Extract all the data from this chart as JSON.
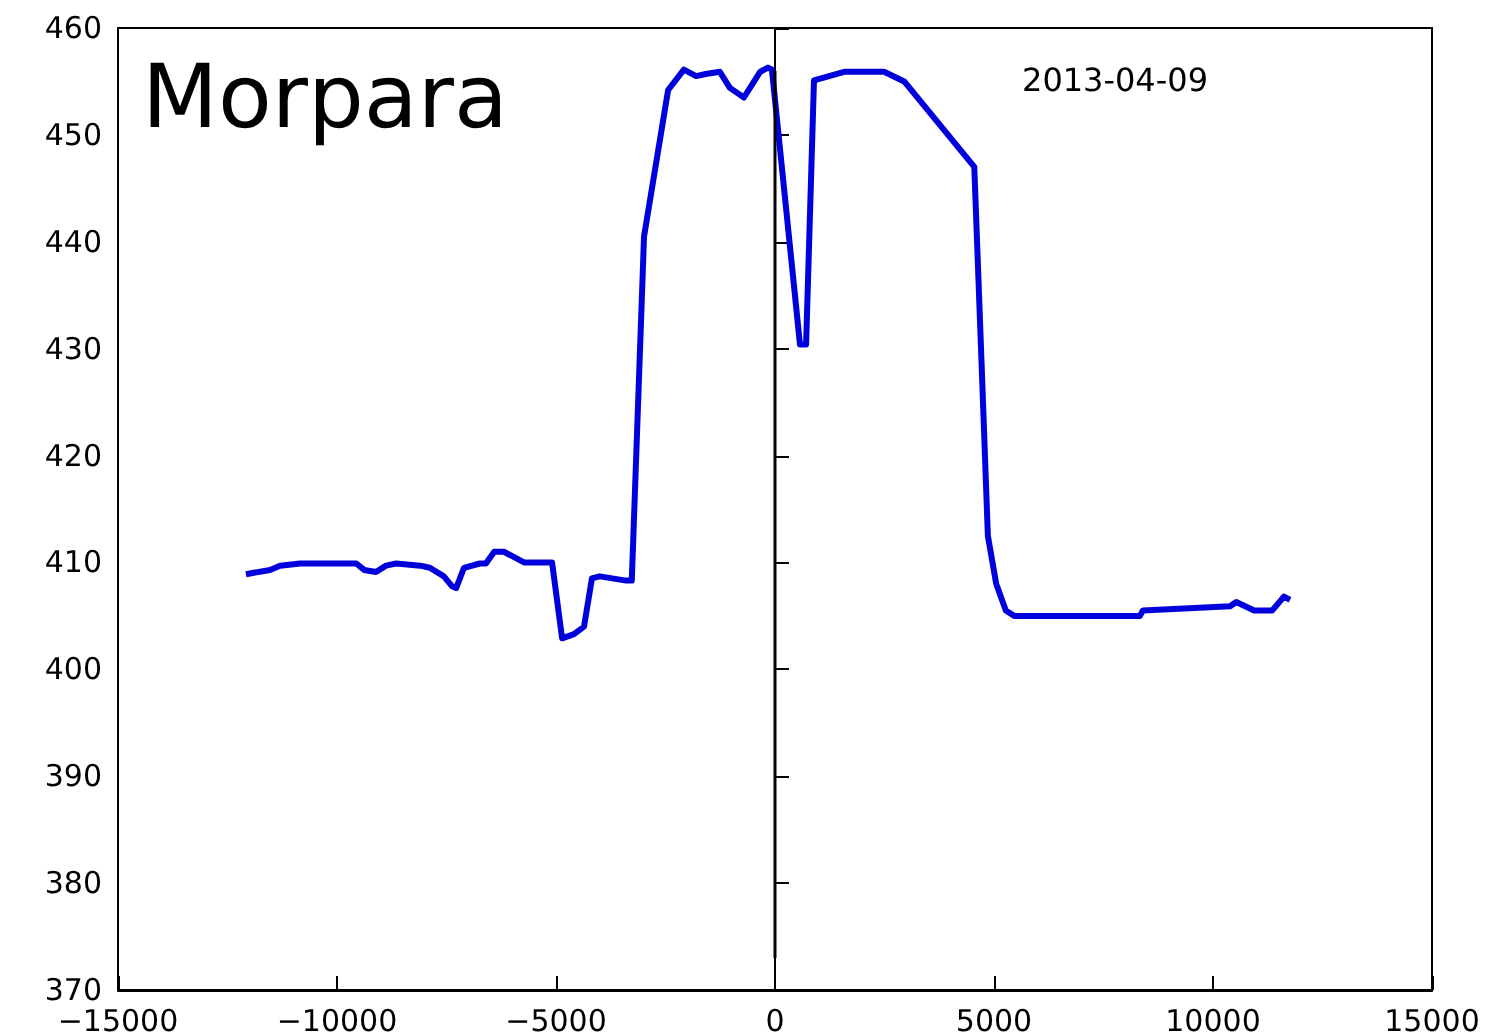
{
  "chart_data": {
    "type": "line",
    "title": "Morpara",
    "annotations": [
      "2013-04-09"
    ],
    "xlim": [
      -15000,
      15000
    ],
    "xticks": [
      -15000,
      -10000,
      -5000,
      0,
      5000,
      10000,
      15000
    ],
    "ylim": [
      370,
      460
    ],
    "yticks": [
      370,
      380,
      390,
      400,
      410,
      420,
      430,
      440,
      450,
      460
    ],
    "grid": false,
    "marker": "none",
    "line_style": "solid",
    "series": [
      {
        "color": "#0000dd",
        "x": [
          -12080,
          -11530,
          -11300,
          -10840,
          -9560,
          -9380,
          -9110,
          -8880,
          -8650,
          -8100,
          -7880,
          -7560,
          -7380,
          -7280,
          -7100,
          -6740,
          -6600,
          -6410,
          -6190,
          -5730,
          -5090,
          -4860,
          -4590,
          -4360,
          -4180,
          -4000,
          -3400,
          -3270,
          -2990,
          -2440,
          -2080,
          -1800,
          -1580,
          -1260,
          -1030,
          -710,
          -340,
          -160,
          -70,
          570,
          710,
          890,
          1580,
          2490,
          2950,
          4550,
          4730,
          4860,
          5050,
          5270,
          5460,
          6960,
          8330,
          8400,
          10390,
          10530,
          10940,
          11350,
          11620,
          11760
        ],
        "values": [
          408.9,
          409.3,
          409.7,
          409.9,
          409.9,
          409.3,
          409.1,
          409.7,
          409.9,
          409.7,
          409.5,
          408.7,
          407.8,
          407.6,
          409.5,
          409.9,
          409.9,
          411.0,
          411.0,
          410.0,
          410.0,
          402.9,
          403.3,
          404.0,
          408.5,
          408.7,
          408.3,
          408.3,
          440.5,
          454.2,
          456.1,
          455.5,
          455.7,
          455.9,
          454.4,
          453.5,
          455.9,
          456.3,
          456.1,
          430.4,
          430.4,
          455.1,
          455.9,
          455.9,
          455.0,
          447.0,
          427.1,
          412.5,
          408.0,
          405.5,
          405.0,
          405.0,
          405.0,
          405.5,
          405.9,
          406.3,
          405.5,
          405.5,
          406.8,
          406.5
        ]
      },
      {
        "color": "#000000",
        "x": [
          0,
          0
        ],
        "values": [
          373,
          456
        ]
      }
    ]
  }
}
